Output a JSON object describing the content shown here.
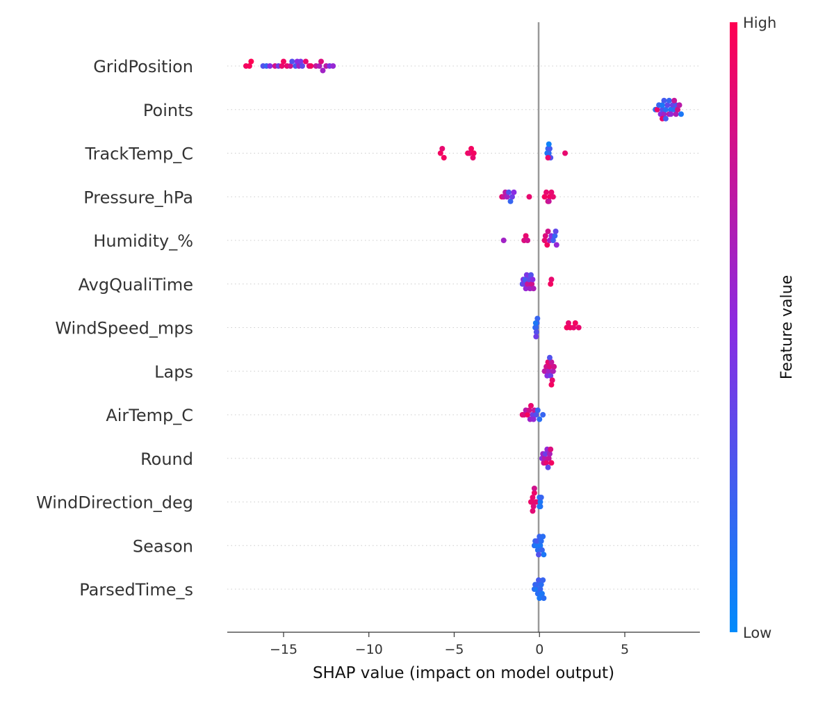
{
  "chart_data": {
    "type": "scatter",
    "subtype": "shap-beeswarm",
    "xlabel": "SHAP value (impact on model output)",
    "xlim": [
      -18.3,
      9.4
    ],
    "xticks": [
      {
        "value": -15,
        "label": "−15"
      },
      {
        "value": -10,
        "label": "−10"
      },
      {
        "value": -5,
        "label": "−5"
      },
      {
        "value": 0,
        "label": "0"
      },
      {
        "value": 5,
        "label": "5"
      }
    ],
    "colorbar": {
      "label": "Feature value",
      "high_label": "High",
      "low_label": "Low",
      "high_color": "#ff0052",
      "mid_color": "#8a2be2",
      "low_color": "#008bfb"
    },
    "zero_line_color": "#999999",
    "features": [
      {
        "name": "GridPosition",
        "points": [
          [
            -17.2,
            0.95
          ],
          [
            -17.0,
            0.97
          ],
          [
            -16.9,
            1.0
          ],
          [
            -16.2,
            0.3
          ],
          [
            -16.0,
            0.2
          ],
          [
            -15.8,
            0.5
          ],
          [
            -15.5,
            0.8
          ],
          [
            -15.3,
            0.4
          ],
          [
            -15.1,
            0.9
          ],
          [
            -15.0,
            0.95
          ],
          [
            -14.8,
            0.9
          ],
          [
            -14.6,
            0.8
          ],
          [
            -14.5,
            0.3
          ],
          [
            -14.3,
            0.25
          ],
          [
            -14.2,
            0.5
          ],
          [
            -14.1,
            0.6
          ],
          [
            -14.0,
            0.45
          ],
          [
            -13.9,
            0.35
          ],
          [
            -13.7,
            0.9
          ],
          [
            -13.5,
            0.85
          ],
          [
            -13.4,
            0.95
          ],
          [
            -13.1,
            0.75
          ],
          [
            -12.9,
            0.65
          ],
          [
            -12.8,
            0.85
          ],
          [
            -12.7,
            0.6
          ],
          [
            -12.5,
            0.7
          ],
          [
            -12.3,
            0.45
          ],
          [
            -12.1,
            0.55
          ]
        ]
      },
      {
        "name": "Points",
        "points": [
          [
            6.8,
            0.15
          ],
          [
            6.9,
            0.9
          ],
          [
            7.0,
            0.2
          ],
          [
            7.1,
            0.5
          ],
          [
            7.2,
            0.3
          ],
          [
            7.2,
            0.1
          ],
          [
            7.3,
            0.6
          ],
          [
            7.3,
            0.25
          ],
          [
            7.4,
            0.15
          ],
          [
            7.5,
            0.35
          ],
          [
            7.6,
            0.7
          ],
          [
            7.6,
            0.2
          ],
          [
            7.7,
            0.1
          ],
          [
            7.8,
            0.4
          ],
          [
            7.9,
            0.15
          ],
          [
            8.0,
            0.3
          ],
          [
            8.0,
            0.65
          ],
          [
            8.1,
            0.8
          ],
          [
            8.2,
            0.7
          ],
          [
            8.3,
            0.1
          ],
          [
            7.2,
            0.9
          ],
          [
            7.4,
            0.25
          ],
          [
            7.7,
            0.55
          ],
          [
            7.9,
            0.75
          ]
        ]
      },
      {
        "name": "TrackTemp_C",
        "points": [
          [
            -5.8,
            0.95
          ],
          [
            -5.7,
            0.9
          ],
          [
            -5.6,
            0.95
          ],
          [
            -4.2,
            0.95
          ],
          [
            -4.1,
            0.9
          ],
          [
            -4.0,
            0.95
          ],
          [
            -3.9,
            0.9
          ],
          [
            -3.85,
            0.95
          ],
          [
            0.45,
            0.1
          ],
          [
            0.5,
            0.2
          ],
          [
            0.55,
            0.15
          ],
          [
            0.6,
            0.25
          ],
          [
            0.65,
            0.3
          ],
          [
            0.55,
            0.05
          ],
          [
            0.5,
            0.9
          ],
          [
            1.5,
            0.9
          ]
        ]
      },
      {
        "name": "Pressure_hPa",
        "points": [
          [
            -2.2,
            0.9
          ],
          [
            -2.1,
            0.75
          ],
          [
            -2.0,
            0.7
          ],
          [
            -1.9,
            0.6
          ],
          [
            -1.8,
            0.3
          ],
          [
            -1.7,
            0.2
          ],
          [
            -1.6,
            0.4
          ],
          [
            -1.5,
            0.5
          ],
          [
            -0.6,
            0.9
          ],
          [
            0.3,
            0.95
          ],
          [
            0.4,
            0.9
          ],
          [
            0.5,
            0.85
          ],
          [
            0.6,
            0.95
          ],
          [
            0.7,
            0.9
          ],
          [
            0.8,
            0.9
          ],
          [
            0.55,
            0.75
          ]
        ]
      },
      {
        "name": "Humidity_%",
        "points": [
          [
            -2.1,
            0.6
          ],
          [
            -0.9,
            0.85
          ],
          [
            -0.8,
            0.9
          ],
          [
            -0.7,
            0.8
          ],
          [
            0.3,
            0.9
          ],
          [
            0.35,
            0.85
          ],
          [
            0.45,
            0.95
          ],
          [
            0.5,
            0.8
          ],
          [
            0.6,
            0.6
          ],
          [
            0.7,
            0.5
          ],
          [
            0.8,
            0.25
          ],
          [
            0.9,
            0.2
          ],
          [
            1.0,
            0.55
          ],
          [
            0.95,
            0.35
          ]
        ]
      },
      {
        "name": "AvgQualiTime",
        "points": [
          [
            -1.0,
            0.3
          ],
          [
            -0.95,
            0.5
          ],
          [
            -0.9,
            0.4
          ],
          [
            -0.85,
            0.25
          ],
          [
            -0.8,
            0.55
          ],
          [
            -0.75,
            0.45
          ],
          [
            -0.7,
            0.75
          ],
          [
            -0.6,
            0.35
          ],
          [
            -0.55,
            0.6
          ],
          [
            -0.5,
            0.3
          ],
          [
            -0.45,
            0.8
          ],
          [
            -0.4,
            0.5
          ],
          [
            -0.35,
            0.65
          ],
          [
            0.65,
            0.95
          ],
          [
            0.7,
            0.9
          ]
        ]
      },
      {
        "name": "WindSpeed_mps",
        "points": [
          [
            -0.25,
            0.15
          ],
          [
            -0.2,
            0.2
          ],
          [
            -0.15,
            0.25
          ],
          [
            -0.22,
            0.1
          ],
          [
            -0.18,
            0.3
          ],
          [
            -0.12,
            0.2
          ],
          [
            -0.2,
            0.4
          ],
          [
            1.6,
            0.95
          ],
          [
            1.7,
            0.9
          ],
          [
            1.8,
            0.95
          ],
          [
            2.0,
            0.9
          ],
          [
            2.1,
            0.95
          ],
          [
            2.3,
            0.9
          ]
        ]
      },
      {
        "name": "Laps",
        "points": [
          [
            0.3,
            0.7
          ],
          [
            0.4,
            0.8
          ],
          [
            0.45,
            0.5
          ],
          [
            0.5,
            0.9
          ],
          [
            0.55,
            0.6
          ],
          [
            0.6,
            0.85
          ],
          [
            0.65,
            0.4
          ],
          [
            0.7,
            0.75
          ],
          [
            0.75,
            0.9
          ],
          [
            0.8,
            0.65
          ],
          [
            0.85,
            0.8
          ],
          [
            0.6,
            0.3
          ],
          [
            0.7,
            0.95
          ]
        ]
      },
      {
        "name": "AirTemp_C",
        "points": [
          [
            -1.0,
            0.9
          ],
          [
            -0.9,
            0.85
          ],
          [
            -0.8,
            0.7
          ],
          [
            -0.7,
            0.95
          ],
          [
            -0.6,
            0.8
          ],
          [
            -0.55,
            0.6
          ],
          [
            -0.5,
            0.9
          ],
          [
            -0.4,
            0.4
          ],
          [
            -0.3,
            0.75
          ],
          [
            -0.2,
            0.3
          ],
          [
            -0.1,
            0.2
          ],
          [
            0.0,
            0.15
          ],
          [
            0.2,
            0.2
          ],
          [
            -0.35,
            0.55
          ]
        ]
      },
      {
        "name": "Round",
        "points": [
          [
            0.15,
            0.5
          ],
          [
            0.2,
            0.6
          ],
          [
            0.25,
            0.8
          ],
          [
            0.3,
            0.7
          ],
          [
            0.35,
            0.4
          ],
          [
            0.4,
            0.9
          ],
          [
            0.45,
            0.55
          ],
          [
            0.5,
            0.35
          ],
          [
            0.55,
            0.75
          ],
          [
            0.6,
            0.65
          ],
          [
            0.7,
            0.95
          ],
          [
            0.65,
            0.85
          ]
        ]
      },
      {
        "name": "WindDirection_deg",
        "points": [
          [
            -0.5,
            0.95
          ],
          [
            -0.45,
            0.9
          ],
          [
            -0.4,
            0.9
          ],
          [
            -0.35,
            0.85
          ],
          [
            -0.3,
            0.92
          ],
          [
            -0.4,
            0.88
          ],
          [
            -0.3,
            0.8
          ],
          [
            -0.2,
            0.9
          ],
          [
            0.0,
            0.15
          ],
          [
            0.05,
            0.1
          ],
          [
            0.1,
            0.2
          ],
          [
            0.05,
            0.15
          ],
          [
            0.0,
            0.1
          ]
        ]
      },
      {
        "name": "Season",
        "points": [
          [
            -0.3,
            0.15
          ],
          [
            -0.25,
            0.2
          ],
          [
            -0.2,
            0.1
          ],
          [
            -0.15,
            0.25
          ],
          [
            -0.1,
            0.15
          ],
          [
            0.0,
            0.2
          ],
          [
            0.05,
            0.1
          ],
          [
            0.1,
            0.15
          ],
          [
            0.15,
            0.2
          ],
          [
            0.2,
            0.15
          ],
          [
            0.25,
            0.1
          ],
          [
            -0.05,
            0.3
          ]
        ]
      },
      {
        "name": "ParsedTime_s",
        "points": [
          [
            -0.3,
            0.15
          ],
          [
            -0.25,
            0.2
          ],
          [
            -0.2,
            0.1
          ],
          [
            -0.15,
            0.2
          ],
          [
            -0.1,
            0.15
          ],
          [
            -0.05,
            0.25
          ],
          [
            0.0,
            0.1
          ],
          [
            0.05,
            0.2
          ],
          [
            0.1,
            0.15
          ],
          [
            0.15,
            0.1
          ],
          [
            0.2,
            0.2
          ],
          [
            0.25,
            0.15
          ]
        ]
      }
    ]
  }
}
